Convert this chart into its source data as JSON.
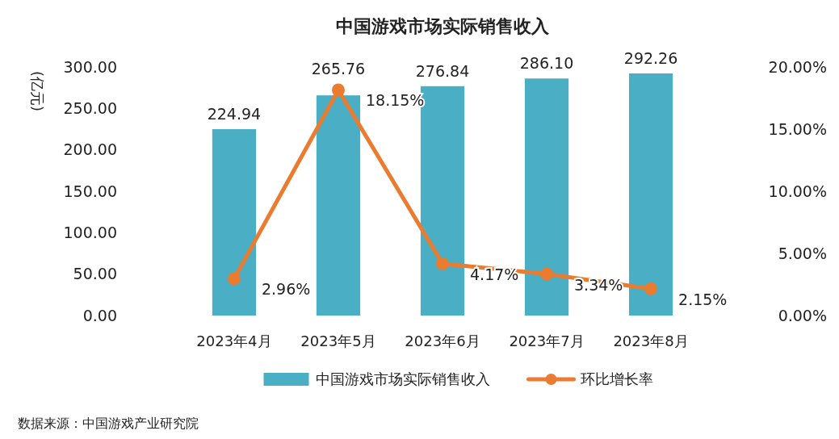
{
  "chart_data": {
    "type": "bar",
    "title": "中国游戏市场实际销售收入",
    "ylabel": "(亿元)",
    "categories": [
      "2023年4月",
      "2023年5月",
      "2023年6月",
      "2023年7月",
      "2023年8月"
    ],
    "series": [
      {
        "name": "中国游戏市场实际销售收入",
        "color": "#4aaec4",
        "values": [
          224.94,
          265.76,
          276.84,
          286.1,
          292.26
        ],
        "value_labels": [
          "224.94",
          "265.76",
          "276.84",
          "286.10",
          "292.26"
        ]
      },
      {
        "name": "环比增长率",
        "type": "line",
        "axis": "y2",
        "color": "#e97c30",
        "marker": "circle",
        "values": [
          2.96,
          18.15,
          4.17,
          3.34,
          2.15
        ],
        "value_labels": [
          "2.96%",
          "18.15%",
          "4.17%",
          "3.34%",
          "2.15%"
        ]
      }
    ],
    "ylim": [
      0,
      300
    ],
    "yticks": [
      {
        "value": 0,
        "label": "0.00"
      },
      {
        "value": 50,
        "label": "50.00"
      },
      {
        "value": 100,
        "label": "100.00"
      },
      {
        "value": 150,
        "label": "150.00"
      },
      {
        "value": 200,
        "label": "200.00"
      },
      {
        "value": 250,
        "label": "250.00"
      },
      {
        "value": 300,
        "label": "300.00"
      }
    ],
    "y2lim": [
      0,
      20
    ],
    "y2ticks": [
      {
        "value": 0,
        "label": "0.00%"
      },
      {
        "value": 5,
        "label": "5.00%"
      },
      {
        "value": 10,
        "label": "10.00%"
      },
      {
        "value": 15,
        "label": "15.00%"
      },
      {
        "value": 20,
        "label": "20.00%"
      }
    ],
    "legend": "bottom",
    "grid": false,
    "annotations": [
      "数据来源：中国游戏产业研究院"
    ]
  }
}
